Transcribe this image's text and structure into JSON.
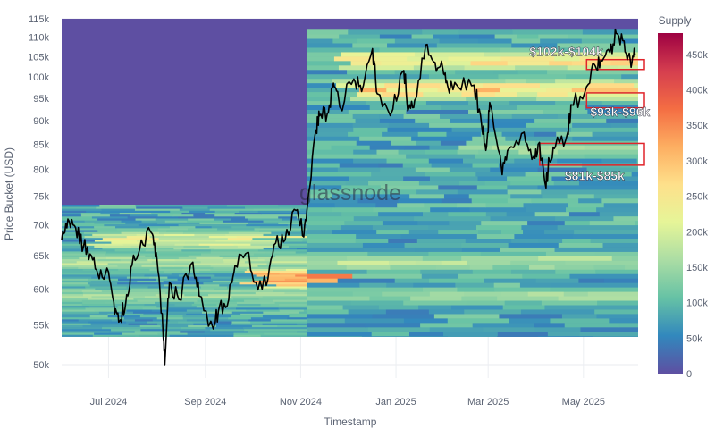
{
  "chart_data": {
    "type": "heatmap",
    "xlabel": "Timestamp",
    "ylabel": "Price Bucket (USD)",
    "y_scale": "log",
    "ylim": [
      50000,
      115000
    ],
    "y_ticks": [
      {
        "value": 50000,
        "label": "50k"
      },
      {
        "value": 55000,
        "label": "55k"
      },
      {
        "value": 60000,
        "label": "60k"
      },
      {
        "value": 65000,
        "label": "65k"
      },
      {
        "value": 70000,
        "label": "70k"
      },
      {
        "value": 75000,
        "label": "75k"
      },
      {
        "value": 80000,
        "label": "80k"
      },
      {
        "value": 85000,
        "label": "85k"
      },
      {
        "value": 90000,
        "label": "90k"
      },
      {
        "value": 95000,
        "label": "95k"
      },
      {
        "value": 100000,
        "label": "100k"
      },
      {
        "value": 105000,
        "label": "105k"
      },
      {
        "value": 110000,
        "label": "110k"
      },
      {
        "value": 115000,
        "label": "115k"
      }
    ],
    "xlim": [
      "2024-06-01",
      "2025-06-05"
    ],
    "x_ticks": [
      {
        "value": "2024-07-01",
        "label": "Jul 2024"
      },
      {
        "value": "2024-09-01",
        "label": "Sep 2024"
      },
      {
        "value": "2024-11-01",
        "label": "Nov 2024"
      },
      {
        "value": "2025-01-01",
        "label": "Jan 2025"
      },
      {
        "value": "2025-03-01",
        "label": "Mar 2025"
      },
      {
        "value": "2025-05-01",
        "label": "May 2025"
      }
    ],
    "colorbar": {
      "title": "Supply",
      "min": 0,
      "max": 480000,
      "ticks": [
        {
          "value": 0,
          "label": "0"
        },
        {
          "value": 50000,
          "label": "50k"
        },
        {
          "value": 100000,
          "label": "100k"
        },
        {
          "value": 150000,
          "label": "150k"
        },
        {
          "value": 200000,
          "label": "200k"
        },
        {
          "value": 250000,
          "label": "250k"
        },
        {
          "value": 300000,
          "label": "300k"
        },
        {
          "value": 350000,
          "label": "350k"
        },
        {
          "value": 400000,
          "label": "400k"
        },
        {
          "value": 450000,
          "label": "450k"
        }
      ],
      "colors": [
        "#5e4fa2",
        "#3288bd",
        "#66c2a5",
        "#abdda4",
        "#e6f598",
        "#fee08b",
        "#fdae61",
        "#f46d43",
        "#d53e4f",
        "#9e0142"
      ]
    },
    "heatmap_regions": [
      {
        "from": "2024-06-01",
        "to": "2024-11-05",
        "covered_price_range": [
          53000,
          73500
        ]
      },
      {
        "from": "2024-11-05",
        "to": "2025-06-05",
        "covered_price_range": [
          53000,
          112000
        ]
      }
    ],
    "hotspots": [
      {
        "from": "2024-06-20",
        "to": "2024-10-15",
        "price": 67500,
        "supply": 230000
      },
      {
        "from": "2024-10-01",
        "to": "2024-11-20",
        "price": 61500,
        "supply": 360000
      },
      {
        "from": "2024-12-01",
        "to": "2025-06-05",
        "price": 97000,
        "supply": 290000
      },
      {
        "from": "2024-12-05",
        "to": "2025-06-05",
        "price": 104000,
        "supply": 270000
      },
      {
        "from": "2024-06-01",
        "to": "2025-06-05",
        "price": 64000,
        "supply": 180000
      },
      {
        "from": "2024-06-01",
        "to": "2025-06-05",
        "price": 59000,
        "supply": 160000
      },
      {
        "from": "2025-02-20",
        "to": "2025-06-05",
        "price": 84000,
        "supply": 170000
      }
    ],
    "series": [
      {
        "values": [
          [
            "2024-06-01",
            67500
          ],
          [
            "2024-06-05",
            71000
          ],
          [
            "2024-06-10",
            69500
          ],
          [
            "2024-06-15",
            66500
          ],
          [
            "2024-06-20",
            65000
          ],
          [
            "2024-06-25",
            61500
          ],
          [
            "2024-07-01",
            62500
          ],
          [
            "2024-07-05",
            56500
          ],
          [
            "2024-07-08",
            55500
          ],
          [
            "2024-07-12",
            58000
          ],
          [
            "2024-07-16",
            63500
          ],
          [
            "2024-07-22",
            67500
          ],
          [
            "2024-07-29",
            68500
          ],
          [
            "2024-08-01",
            64500
          ],
          [
            "2024-08-05",
            53500
          ],
          [
            "2024-08-06",
            50000
          ],
          [
            "2024-08-09",
            61000
          ],
          [
            "2024-08-15",
            58500
          ],
          [
            "2024-08-24",
            64000
          ],
          [
            "2024-08-28",
            59000
          ],
          [
            "2024-09-06",
            54500
          ],
          [
            "2024-09-10",
            57500
          ],
          [
            "2024-09-16",
            58500
          ],
          [
            "2024-09-20",
            63500
          ],
          [
            "2024-09-28",
            65500
          ],
          [
            "2024-10-02",
            61000
          ],
          [
            "2024-10-10",
            60500
          ],
          [
            "2024-10-16",
            67000
          ],
          [
            "2024-10-22",
            67500
          ],
          [
            "2024-10-29",
            72500
          ],
          [
            "2024-11-03",
            68000
          ],
          [
            "2024-11-06",
            75500
          ],
          [
            "2024-11-11",
            88000
          ],
          [
            "2024-11-13",
            91000
          ],
          [
            "2024-11-18",
            91500
          ],
          [
            "2024-11-22",
            98500
          ],
          [
            "2024-11-26",
            93000
          ],
          [
            "2024-12-05",
            99500
          ],
          [
            "2024-12-10",
            96500
          ],
          [
            "2024-12-17",
            107000
          ],
          [
            "2024-12-20",
            96000
          ],
          [
            "2024-12-30",
            92500
          ],
          [
            "2025-01-06",
            101500
          ],
          [
            "2025-01-09",
            92500
          ],
          [
            "2025-01-13",
            94500
          ],
          [
            "2025-01-20",
            108000
          ],
          [
            "2025-01-26",
            103500
          ],
          [
            "2025-01-31",
            102000
          ],
          [
            "2025-02-03",
            98000
          ],
          [
            "2025-02-10",
            97500
          ],
          [
            "2025-02-20",
            98000
          ],
          [
            "2025-02-25",
            88500
          ],
          [
            "2025-02-28",
            84500
          ],
          [
            "2025-03-02",
            94000
          ],
          [
            "2025-03-10",
            79000
          ],
          [
            "2025-03-14",
            84000
          ],
          [
            "2025-03-24",
            87500
          ],
          [
            "2025-03-30",
            82500
          ],
          [
            "2025-04-02",
            85000
          ],
          [
            "2025-04-07",
            76500
          ],
          [
            "2025-04-09",
            82000
          ],
          [
            "2025-04-13",
            84500
          ],
          [
            "2025-04-21",
            87500
          ],
          [
            "2025-04-23",
            93500
          ],
          [
            "2025-05-02",
            96500
          ],
          [
            "2025-05-08",
            103000
          ],
          [
            "2025-05-12",
            104000
          ],
          [
            "2025-05-18",
            106000
          ],
          [
            "2025-05-22",
            111000
          ],
          [
            "2025-05-27",
            109000
          ],
          [
            "2025-05-31",
            104000
          ],
          [
            "2025-06-03",
            105500
          ]
        ]
      }
    ],
    "annotations": [
      {
        "label": "$102k-$104k",
        "from": "2025-05-03",
        "to": "2025-06-05",
        "price_range": [
          102000,
          104000
        ]
      },
      {
        "label": "$93k-$96k",
        "from": "2025-05-03",
        "to": "2025-06-05",
        "price_range": [
          93000,
          96000
        ]
      },
      {
        "label": "$81k-$85k",
        "from": "2025-04-03",
        "to": "2025-06-05",
        "price_range": [
          81000,
          85000
        ]
      }
    ],
    "watermark": "glassnode",
    "grid": true,
    "legend_position": "right"
  }
}
